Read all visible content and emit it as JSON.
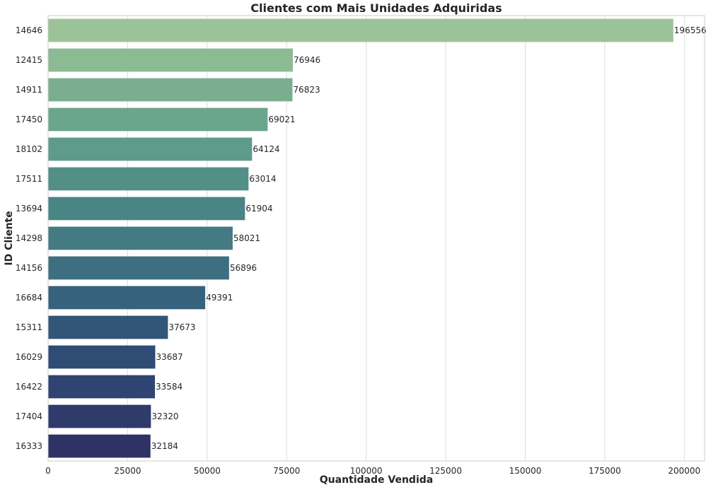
{
  "chart_data": {
    "type": "bar",
    "orientation": "horizontal",
    "title": "Clientes com Mais Unidades Adquiridas",
    "xlabel": "Quantidade Vendida",
    "ylabel": "ID Cliente",
    "categories": [
      "14646",
      "12415",
      "14911",
      "17450",
      "18102",
      "17511",
      "13694",
      "14298",
      "14156",
      "16684",
      "15311",
      "16029",
      "16422",
      "17404",
      "16333"
    ],
    "values": [
      196556,
      76946,
      76823,
      69021,
      64124,
      63014,
      61904,
      58021,
      56896,
      49391,
      37673,
      33687,
      33584,
      32320,
      32184
    ],
    "data_labels": [
      "196556",
      "76946",
      "76823",
      "69021",
      "64124",
      "63014",
      "61904",
      "58021",
      "56896",
      "49391",
      "37673",
      "33687",
      "33584",
      "32320",
      "32184"
    ],
    "x_ticks": [
      0,
      25000,
      50000,
      75000,
      100000,
      125000,
      150000,
      175000,
      200000
    ],
    "x_tick_labels": [
      "0",
      "25000",
      "50000",
      "75000",
      "100000",
      "125000",
      "150000",
      "175000",
      "200000"
    ],
    "xlim": [
      0,
      206384
    ],
    "grid": "vertical",
    "colors": [
      "#9cc398",
      "#8cba93",
      "#7aae8f",
      "#6ba58c",
      "#5e9b8a",
      "#528f87",
      "#4a8585",
      "#437a83",
      "#3d6f81",
      "#37627d",
      "#315678",
      "#2f4d74",
      "#2f4470",
      "#2f3b6a",
      "#2f3264"
    ]
  }
}
